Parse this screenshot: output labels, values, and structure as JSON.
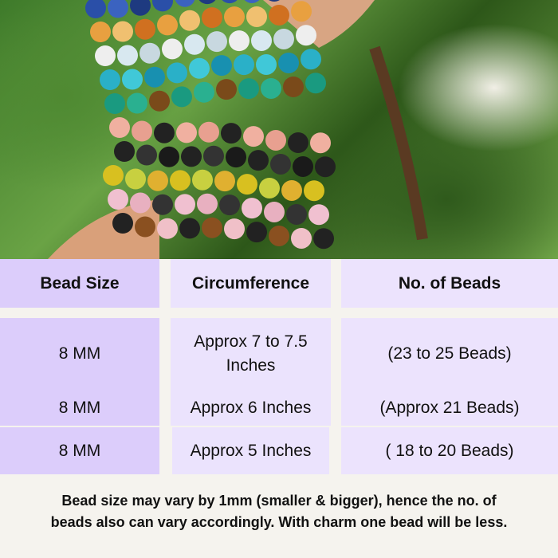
{
  "photo": {
    "icon": "bracelets-photo"
  },
  "table": {
    "headers": [
      "Bead Size",
      "Circumference",
      "No. of Beads"
    ],
    "rows": [
      {
        "size": "8 MM",
        "circumference": "Approx 7 to 7.5 Inches",
        "beads": "(23 to 25 Beads)"
      },
      {
        "size": "8 MM",
        "circumference": "Approx 6 Inches",
        "beads": "(Approx 21 Beads)"
      },
      {
        "size": "8 MM",
        "circumference": "Approx 5 Inches",
        "beads": "( 18 to 20 Beads)"
      }
    ],
    "colors": {
      "header": "#b899fb",
      "col1": "#dccdfb",
      "col2": "#ebe3fd",
      "col3": "#ece3fd",
      "background": "#f5f3ee"
    }
  },
  "note": {
    "line1": "Bead size may vary by 1mm (smaller & bigger), hence the no. of",
    "line2": "beads also can vary accordingly. With charm one bead will be less."
  }
}
